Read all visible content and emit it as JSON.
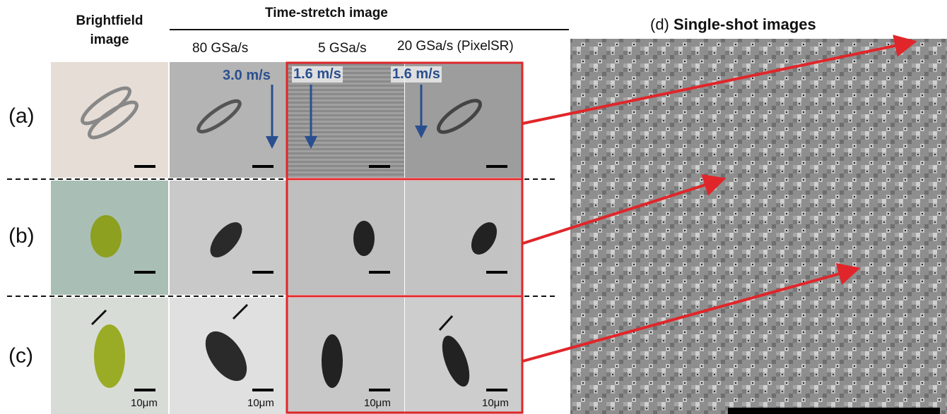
{
  "headers": {
    "brightfield": "Brightfield image",
    "time_stretch": "Time-stretch image",
    "columns": [
      "80 GSa/s",
      "5 GSa/s",
      "20 GSa/s (PixelSR)"
    ]
  },
  "rows": [
    {
      "label": "(a)",
      "speeds": [
        "3.0 m/s",
        "1.6 m/s",
        "1.6 m/s"
      ]
    },
    {
      "label": "(b)"
    },
    {
      "label": "(c)"
    }
  ],
  "scale_bar_labels": [
    "10μm",
    "10μm",
    "10μm",
    "10μm"
  ],
  "panel_d": {
    "label": "(d)",
    "title": "Single-shot images"
  }
}
